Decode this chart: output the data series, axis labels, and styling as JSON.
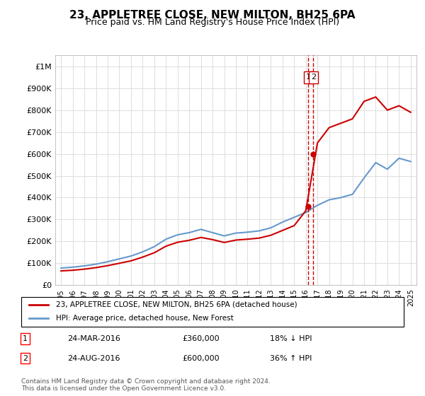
{
  "title": "23, APPLETREE CLOSE, NEW MILTON, BH25 6PA",
  "subtitle": "Price paid vs. HM Land Registry's House Price Index (HPI)",
  "legend_line1": "23, APPLETREE CLOSE, NEW MILTON, BH25 6PA (detached house)",
  "legend_line2": "HPI: Average price, detached house, New Forest",
  "transaction1_label": "1",
  "transaction1_date": "24-MAR-2016",
  "transaction1_price": "£360,000",
  "transaction1_hpi": "18% ↓ HPI",
  "transaction1_year": 2016.23,
  "transaction1_value": 360000,
  "transaction2_label": "2",
  "transaction2_date": "24-AUG-2016",
  "transaction2_price": "£600,000",
  "transaction2_hpi": "36% ↑ HPI",
  "transaction2_year": 2016.65,
  "transaction2_value": 600000,
  "ylim": [
    0,
    1050000
  ],
  "xlim": [
    1994.5,
    2025.5
  ],
  "yticks": [
    0,
    100000,
    200000,
    300000,
    400000,
    500000,
    600000,
    700000,
    800000,
    900000,
    1000000
  ],
  "ytick_labels": [
    "£0",
    "£100K",
    "£200K",
    "£300K",
    "£400K",
    "£500K",
    "£600K",
    "£700K",
    "£800K",
    "£900K",
    "£1M"
  ],
  "red_color": "#cc0000",
  "blue_color": "#6699cc",
  "footer": "Contains HM Land Registry data © Crown copyright and database right 2024.\nThis data is licensed under the Open Government Licence v3.0.",
  "hpi_years": [
    1995,
    1996,
    1997,
    1998,
    1999,
    2000,
    2001,
    2002,
    2003,
    2004,
    2005,
    2006,
    2007,
    2008,
    2009,
    2010,
    2011,
    2012,
    2013,
    2014,
    2015,
    2016,
    2017,
    2018,
    2019,
    2020,
    2021,
    2022,
    2023,
    2024,
    2025
  ],
  "hpi_values": [
    78000,
    82000,
    88000,
    96000,
    107000,
    120000,
    133000,
    152000,
    176000,
    210000,
    230000,
    240000,
    255000,
    240000,
    225000,
    238000,
    242000,
    248000,
    262000,
    288000,
    310000,
    332000,
    365000,
    390000,
    400000,
    415000,
    490000,
    560000,
    530000,
    580000,
    565000
  ],
  "red_years": [
    1995,
    1996,
    1997,
    1998,
    1999,
    2000,
    2001,
    2002,
    2003,
    2004,
    2005,
    2006,
    2007,
    2008,
    2009,
    2010,
    2011,
    2012,
    2013,
    2014,
    2015,
    2016,
    2017,
    2018,
    2019,
    2020,
    2021,
    2022,
    2023,
    2024,
    2025
  ],
  "red_values": [
    65000,
    68000,
    73000,
    80000,
    89000,
    100000,
    111000,
    128000,
    148000,
    178000,
    196000,
    205000,
    218000,
    208000,
    195000,
    206000,
    210000,
    215000,
    228000,
    250000,
    272000,
    340000,
    650000,
    720000,
    740000,
    760000,
    840000,
    860000,
    800000,
    820000,
    790000
  ]
}
